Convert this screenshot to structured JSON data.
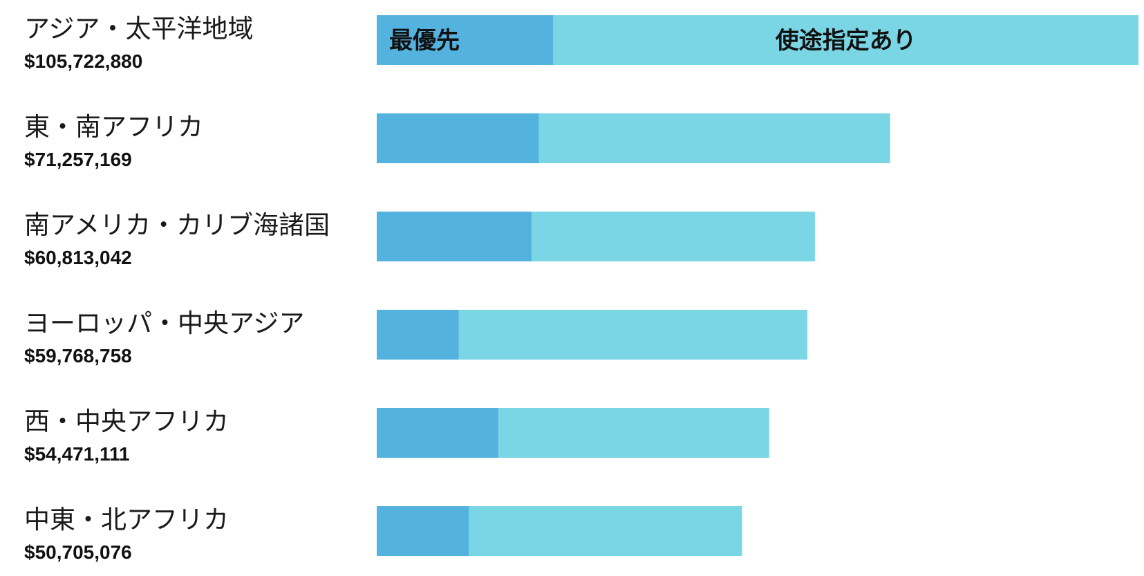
{
  "chart_data": {
    "type": "bar",
    "orientation": "horizontal",
    "stacked": true,
    "colors": {
      "priority": "#54b2df",
      "designated": "#7ad6e4",
      "text": "#111111"
    },
    "segment_labels": {
      "priority": "最優先",
      "designated": "使途指定あり"
    },
    "categories": [
      {
        "region": "アジア・太平洋地域",
        "amount_label": "$105,722,880",
        "total": 105722880,
        "priority": 24500000,
        "designated": 81222880
      },
      {
        "region": "東・南アフリカ",
        "amount_label": "$71,257,169",
        "total": 71257169,
        "priority": 22500000,
        "designated": 48757169
      },
      {
        "region": "南アメリカ・カリブ海諸国",
        "amount_label": "$60,813,042",
        "total": 60813042,
        "priority": 21500000,
        "designated": 39313042
      },
      {
        "region": "ヨーロッパ・中央アジア",
        "amount_label": "$59,768,758",
        "total": 59768758,
        "priority": 11400000,
        "designated": 48368758
      },
      {
        "region": "西・中央アフリカ",
        "amount_label": "$54,471,111",
        "total": 54471111,
        "priority": 16900000,
        "designated": 37571111
      },
      {
        "region": "中東・北アフリカ",
        "amount_label": "$50,705,076",
        "total": 50705076,
        "priority": 12800000,
        "designated": 37905076
      }
    ]
  }
}
